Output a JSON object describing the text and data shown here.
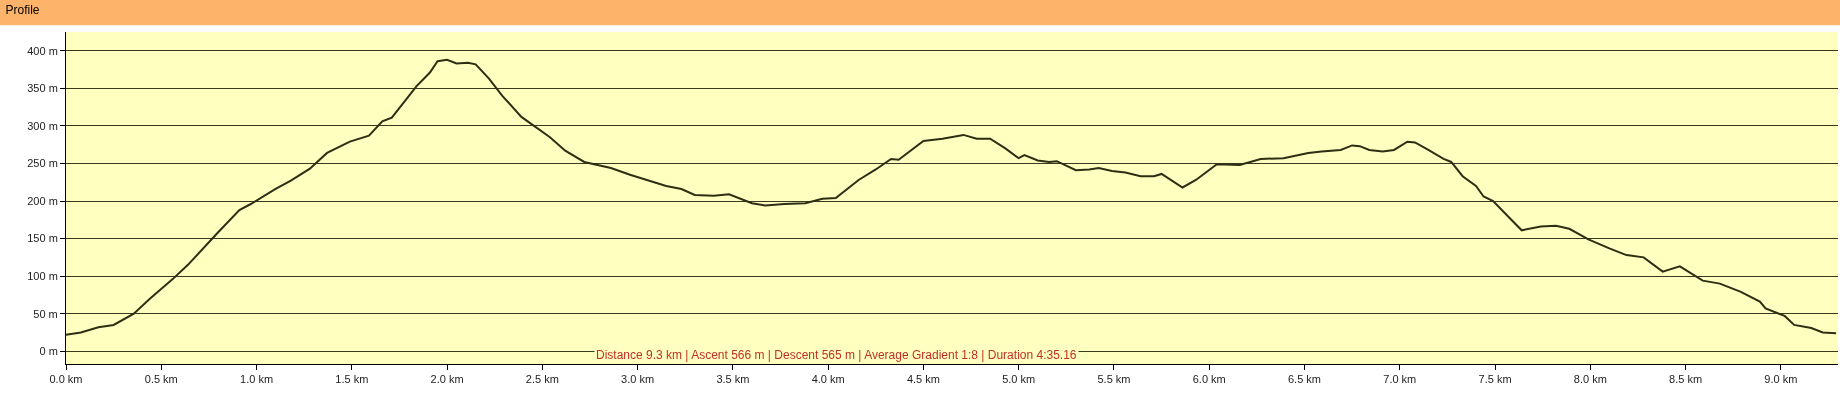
{
  "chart_data": {
    "type": "line",
    "title": "Profile",
    "x": [
      0,
      0.078,
      0.17,
      0.25,
      0.356,
      0.44,
      0.56,
      0.64,
      0.79,
      0.91,
      0.97,
      1.1,
      1.18,
      1.28,
      1.37,
      1.49,
      1.59,
      1.66,
      1.71,
      1.84,
      1.91,
      1.95,
      2.0,
      2.05,
      2.11,
      2.15,
      2.22,
      2.29,
      2.39,
      2.54,
      2.62,
      2.72,
      2.86,
      2.96,
      3.15,
      3.23,
      3.3,
      3.4,
      3.48,
      3.6,
      3.67,
      3.77,
      3.88,
      3.97,
      4.04,
      4.16,
      4.25,
      4.33,
      4.37,
      4.5,
      4.6,
      4.71,
      4.78,
      4.85,
      4.93,
      5.0,
      5.03,
      5.1,
      5.16,
      5.2,
      5.3,
      5.37,
      5.42,
      5.49,
      5.56,
      5.64,
      5.71,
      5.75,
      5.86,
      5.93,
      6.04,
      6.16,
      6.27,
      6.39,
      6.52,
      6.59,
      6.69,
      6.75,
      6.79,
      6.84,
      6.91,
      6.97,
      7.04,
      7.08,
      7.15,
      7.23,
      7.27,
      7.33,
      7.4,
      7.44,
      7.49,
      7.57,
      7.64,
      7.74,
      7.82,
      7.89,
      7.99,
      8.1,
      8.19,
      8.28,
      8.38,
      8.47,
      8.59,
      8.68,
      8.79,
      8.89,
      8.92,
      9.02,
      9.07,
      9.16,
      9.22,
      9.29
    ],
    "series": [
      {
        "color": "#2e2e14",
        "values": [
          22,
          25,
          32,
          35,
          50,
          70,
          96,
          115,
          156,
          188,
          196,
          216,
          227,
          243,
          264,
          279,
          287,
          306,
          311,
          353,
          371,
          386,
          388,
          383,
          384,
          382,
          363,
          340,
          312,
          285,
          267,
          252,
          244,
          235,
          220,
          216,
          208,
          207,
          209,
          197,
          194,
          196,
          197,
          203,
          204,
          228,
          242,
          256,
          255,
          280,
          283,
          288,
          283,
          283,
          270,
          257,
          261,
          254,
          252,
          253,
          241,
          242,
          244,
          240,
          238,
          233,
          233,
          236,
          218,
          228,
          249,
          248,
          256,
          257,
          264,
          266,
          268,
          274,
          273,
          268,
          266,
          268,
          279,
          278,
          268,
          256,
          252,
          233,
          220,
          206,
          200,
          179,
          161,
          166,
          167,
          163,
          149,
          137,
          128,
          125,
          106,
          113,
          94,
          90,
          79,
          66,
          57,
          47,
          35,
          31,
          25,
          24
        ]
      }
    ],
    "xlim": [
      0,
      9.3
    ],
    "ylim": [
      -17,
      425
    ],
    "xticks": [
      {
        "value": 0,
        "label": "0.0 km"
      },
      {
        "value": 0.5,
        "label": "0.5 km"
      },
      {
        "value": 1,
        "label": "1.0 km"
      },
      {
        "value": 1.5,
        "label": "1.5 km"
      },
      {
        "value": 2,
        "label": "2.0 km"
      },
      {
        "value": 2.5,
        "label": "2.5 km"
      },
      {
        "value": 3,
        "label": "3.0 km"
      },
      {
        "value": 3.5,
        "label": "3.5 km"
      },
      {
        "value": 4,
        "label": "4.0 km"
      },
      {
        "value": 4.5,
        "label": "4.5 km"
      },
      {
        "value": 5,
        "label": "5.0 km"
      },
      {
        "value": 5.5,
        "label": "5.5 km"
      },
      {
        "value": 6,
        "label": "6.0 km"
      },
      {
        "value": 6.5,
        "label": "6.5 km"
      },
      {
        "value": 7,
        "label": "7.0 km"
      },
      {
        "value": 7.5,
        "label": "7.5 km"
      },
      {
        "value": 8,
        "label": "8.0 km"
      },
      {
        "value": 8.5,
        "label": "8.5 km"
      },
      {
        "value": 9,
        "label": "9.0 km"
      }
    ],
    "yticks": [
      {
        "value": 0,
        "label": "0 m"
      },
      {
        "value": 50,
        "label": "50 m"
      },
      {
        "value": 100,
        "label": "100 m"
      },
      {
        "value": 150,
        "label": "150 m"
      },
      {
        "value": 200,
        "label": "200 m"
      },
      {
        "value": 250,
        "label": "250 m"
      },
      {
        "value": 300,
        "label": "300 m"
      },
      {
        "value": 350,
        "label": "350 m"
      },
      {
        "value": 400,
        "label": "400 m"
      }
    ],
    "grid": "y",
    "marker": "none",
    "line_style": "solid",
    "annotations": [
      "Distance 9.3 km | Ascent 566 m | Descent 565 m | Average Gradient 1:8 | Duration 4:35.16"
    ]
  }
}
